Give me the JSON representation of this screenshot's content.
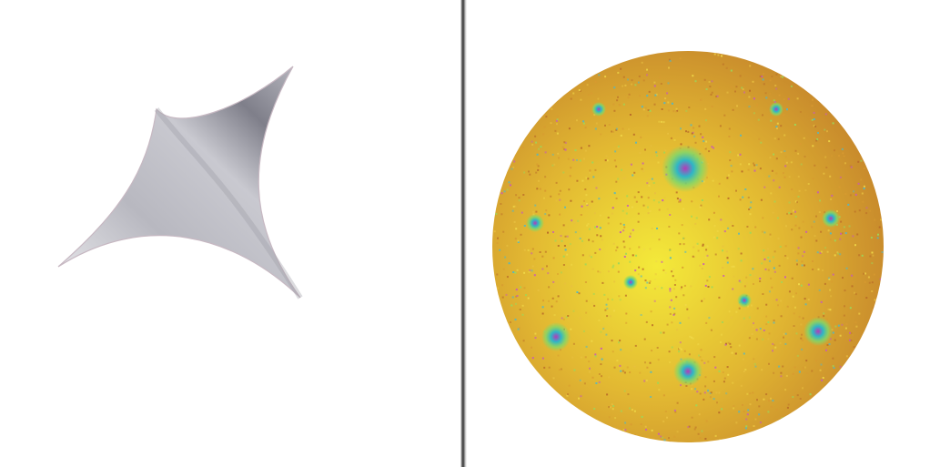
{
  "figure": {
    "left_panel": {
      "shape_icon": "astroid-surface-icon",
      "colors": {
        "dark": "#7f7f8a",
        "mid": "#b8b8c0",
        "light": "#ececef",
        "rim": "#c7b8c2"
      }
    },
    "right_panel": {
      "shape_icon": "speckled-sphere-icon",
      "colors": {
        "highlight": "#f4ea3a",
        "body": "#e2b832",
        "edge": "#c88a2c",
        "spot_core": "#b43bb8",
        "spot_ring": "#2fb6c6",
        "spot_halo": "#7fd86a"
      }
    },
    "divider": {
      "color": "#4a4a4a"
    }
  }
}
